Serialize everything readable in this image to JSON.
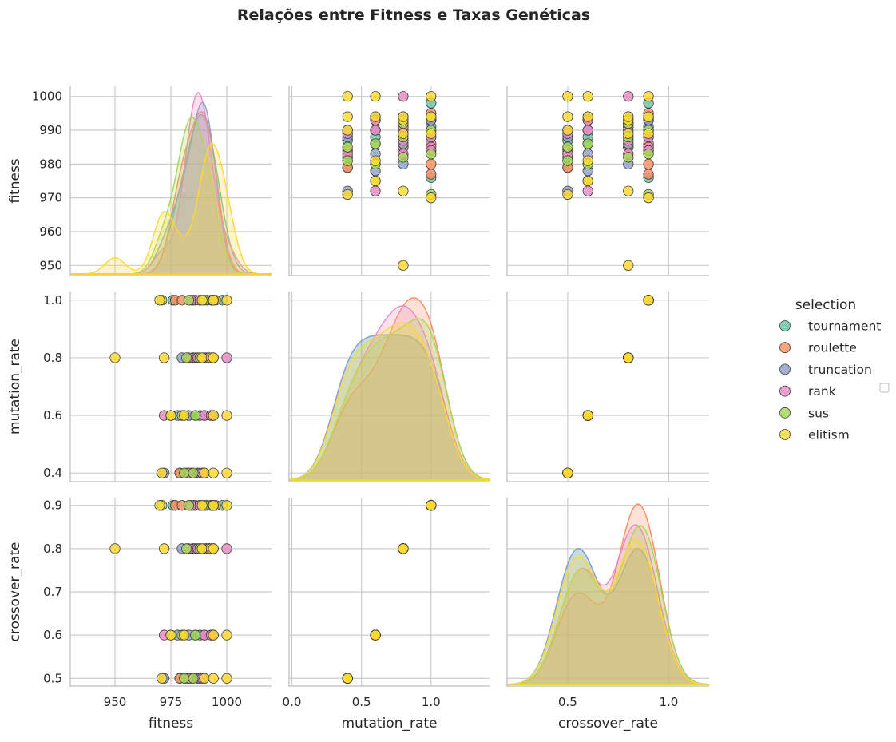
{
  "title": "Relações entre Fitness e Taxas Genéticas",
  "legend": {
    "title": "selection",
    "entries": [
      "tournament",
      "roulette",
      "truncation",
      "rank",
      "sus",
      "elitism"
    ]
  },
  "colors": {
    "tournament": "#66c2a5",
    "roulette": "#fc8d62",
    "truncation": "#8da0cb",
    "rank": "#e78ac3",
    "sus": "#a6d854",
    "elitism": "#ffd92f"
  },
  "variables": [
    {
      "name": "fitness",
      "label": "fitness",
      "range": [
        930,
        1020
      ],
      "ticks": [
        950,
        975,
        1000
      ],
      "y_ticks": [
        950,
        960,
        970,
        980,
        990,
        1000
      ],
      "y_range": [
        947,
        1003
      ]
    },
    {
      "name": "mutation_rate",
      "label": "mutation_rate",
      "range": [
        -0.02,
        1.42
      ],
      "ticks": [
        0.0,
        0.5,
        1.0
      ],
      "y_ticks": [
        0.4,
        0.6,
        0.8,
        1.0
      ],
      "y_ticks_labels": [
        "0.4",
        "0.6",
        "0.8",
        "1.0"
      ],
      "y_range": [
        0.37,
        1.03
      ]
    },
    {
      "name": "crossover_rate",
      "label": "crossover_rate",
      "range": [
        0.2,
        1.2
      ],
      "ticks": [
        0.5,
        1.0
      ],
      "y_ticks": [
        0.5,
        0.6,
        0.7,
        0.8,
        0.9
      ],
      "y_range": [
        0.482,
        0.918
      ]
    }
  ],
  "x_tick_labels": {
    "fitness": [
      "950",
      "975",
      "1000"
    ],
    "mutation_rate": [
      "0.0",
      "0.5",
      "1.0"
    ],
    "crossover_rate": [
      "0.5",
      "1.0"
    ]
  },
  "y_tick_labels": {
    "fitness": [
      "950",
      "960",
      "970",
      "980",
      "990",
      "1000"
    ],
    "mutation_rate": [
      "0.4",
      "0.6",
      "0.8",
      "1.0"
    ],
    "crossover_rate": [
      "0.5",
      "0.6",
      "0.7",
      "0.8",
      "0.9"
    ]
  },
  "chart_data": {
    "type": "scatter",
    "kind": "pairplot",
    "hue": "selection",
    "diag_kind": "kde",
    "grid": true,
    "legend_position": "right",
    "series": [
      {
        "name": "tournament",
        "points": [
          [
            982,
            0.4,
            0.5
          ],
          [
            979,
            0.4,
            0.5
          ],
          [
            986,
            0.6,
            0.6
          ],
          [
            988,
            0.6,
            0.6
          ],
          [
            994,
            0.6,
            0.6
          ],
          [
            992,
            0.8,
            0.8
          ],
          [
            990,
            0.8,
            0.8
          ],
          [
            976,
            1.0,
            0.9
          ],
          [
            993,
            1.0,
            0.9
          ],
          [
            998,
            1.0,
            0.9
          ],
          [
            987,
            0.4,
            0.5
          ],
          [
            985,
            0.8,
            0.8
          ]
        ]
      },
      {
        "name": "roulette",
        "points": [
          [
            979,
            0.4,
            0.5
          ],
          [
            984,
            0.4,
            0.5
          ],
          [
            990,
            0.6,
            0.6
          ],
          [
            993,
            0.6,
            0.6
          ],
          [
            985,
            0.8,
            0.8
          ],
          [
            988,
            0.8,
            0.8
          ],
          [
            991,
            0.8,
            0.8
          ],
          [
            992,
            0.8,
            0.8
          ],
          [
            977,
            1.0,
            0.9
          ],
          [
            980,
            1.0,
            0.9
          ],
          [
            986,
            1.0,
            0.9
          ],
          [
            995,
            1.0,
            0.9
          ]
        ]
      },
      {
        "name": "truncation",
        "points": [
          [
            972,
            0.4,
            0.5
          ],
          [
            988,
            0.4,
            0.5
          ],
          [
            978,
            0.6,
            0.6
          ],
          [
            990,
            0.6,
            0.6
          ],
          [
            980,
            0.8,
            0.8
          ],
          [
            986,
            0.8,
            0.8
          ],
          [
            994,
            0.8,
            0.8
          ],
          [
            991,
            1.0,
            0.9
          ],
          [
            993,
            1.0,
            0.9
          ],
          [
            988,
            1.0,
            0.9
          ],
          [
            983,
            0.6,
            0.6
          ],
          [
            990,
            0.4,
            0.5
          ]
        ]
      },
      {
        "name": "rank",
        "points": [
          [
            983,
            0.4,
            0.5
          ],
          [
            989,
            0.4,
            0.5
          ],
          [
            972,
            0.6,
            0.6
          ],
          [
            990,
            0.6,
            0.6
          ],
          [
            1000,
            0.8,
            0.8
          ],
          [
            991,
            0.8,
            0.8
          ],
          [
            983,
            0.8,
            0.8
          ],
          [
            985,
            1.0,
            0.9
          ],
          [
            984,
            1.0,
            0.9
          ],
          [
            988,
            1.0,
            0.9
          ],
          [
            993,
            0.6,
            0.6
          ],
          [
            987,
            0.8,
            0.8
          ]
        ]
      },
      {
        "name": "sus",
        "points": [
          [
            981,
            0.4,
            0.5
          ],
          [
            985,
            0.4,
            0.5
          ],
          [
            986,
            0.6,
            0.6
          ],
          [
            980,
            0.6,
            0.6
          ],
          [
            988,
            0.8,
            0.8
          ],
          [
            982,
            0.8,
            0.8
          ],
          [
            971,
            1.0,
            0.9
          ],
          [
            983,
            1.0,
            0.9
          ],
          [
            994,
            1.0,
            0.9
          ],
          [
            990,
            1.0,
            0.9
          ],
          [
            975,
            0.6,
            0.6
          ],
          [
            992,
            0.8,
            0.8
          ]
        ]
      },
      {
        "name": "elitism",
        "points": [
          [
            971,
            0.4,
            0.5
          ],
          [
            990,
            0.4,
            0.5
          ],
          [
            994,
            0.4,
            0.5
          ],
          [
            1000,
            0.4,
            0.5
          ],
          [
            975,
            0.6,
            0.6
          ],
          [
            981,
            0.6,
            0.6
          ],
          [
            994,
            0.6,
            0.6
          ],
          [
            1000,
            0.6,
            0.6
          ],
          [
            950,
            0.8,
            0.8
          ],
          [
            972,
            0.8,
            0.8
          ],
          [
            989,
            0.8,
            0.8
          ],
          [
            993,
            0.8,
            0.8
          ],
          [
            994,
            0.8,
            0.8
          ],
          [
            970,
            1.0,
            0.9
          ],
          [
            989,
            1.0,
            0.9
          ],
          [
            1000,
            1.0,
            0.9
          ],
          [
            994,
            1.0,
            0.9
          ]
        ]
      }
    ]
  }
}
